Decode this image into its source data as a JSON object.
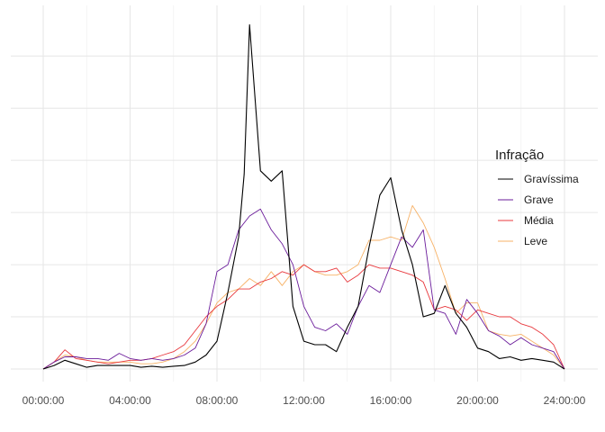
{
  "chart_data": {
    "type": "line",
    "x_axis": {
      "unit": "hours",
      "lim": [
        -1.5,
        25
      ],
      "ticks": [
        0,
        4,
        8,
        12,
        16,
        20,
        24
      ],
      "tick_labels": [
        "00:00:00",
        "04:00:00",
        "08:00:00",
        "12:00:00",
        "16:00:00",
        "20:00:00",
        "24:00:00"
      ]
    },
    "y_axis": {
      "lim": [
        0,
        100
      ],
      "grid_lines": [
        0,
        15,
        30,
        45,
        60,
        75,
        90
      ],
      "tick_labels_shown": false
    },
    "grid": true,
    "legend": {
      "title": "Infração",
      "placement": "right",
      "entries": [
        "Gravíssima",
        "Grave",
        "Média",
        "Leve"
      ]
    },
    "colors": {
      "Gravíssima": "#000000",
      "Grave": "#6a1b9a",
      "Média": "#e8383d",
      "Leve": "#f7b267"
    },
    "series": [
      {
        "name": "Gravíssima",
        "x": [
          0,
          0.5,
          1,
          1.5,
          2,
          2.5,
          3,
          3.5,
          4,
          4.5,
          5,
          5.5,
          6,
          6.5,
          7,
          7.5,
          8,
          8.5,
          9,
          9.25,
          9.5,
          10,
          10.5,
          11,
          11.5,
          12,
          12.5,
          13,
          13.5,
          14,
          14.5,
          15,
          15.5,
          16,
          16.5,
          17,
          17.5,
          18,
          18.5,
          19,
          19.5,
          20,
          20.5,
          21,
          21.5,
          22,
          22.5,
          23,
          23.5,
          24
        ],
        "y": [
          0,
          1,
          2.5,
          1.5,
          0.5,
          1,
          1,
          1,
          1,
          0.5,
          0.8,
          0.5,
          0.8,
          1,
          2,
          4,
          8,
          22,
          38,
          56,
          99,
          57,
          54,
          57,
          18,
          8,
          7,
          7,
          5,
          12,
          18,
          35,
          50,
          55,
          40,
          30,
          15,
          16,
          24,
          16,
          12,
          6,
          5,
          3,
          3.5,
          2.5,
          3,
          2.5,
          2,
          0
        ]
      },
      {
        "name": "Grave",
        "x": [
          0,
          0.5,
          1,
          1.5,
          2,
          2.5,
          3,
          3.5,
          4,
          4.5,
          5,
          5.5,
          6,
          6.5,
          7,
          7.5,
          8,
          8.5,
          9,
          9.5,
          10,
          10.5,
          11,
          11.5,
          12,
          12.5,
          13,
          13.5,
          14,
          14.5,
          15,
          15.5,
          16,
          16.5,
          17,
          17.5,
          18,
          18.5,
          19,
          19.5,
          20,
          20.5,
          21,
          21.5,
          22,
          22.5,
          23,
          23.5,
          24
        ],
        "y": [
          0,
          2,
          3.5,
          3.5,
          3,
          3,
          2.5,
          4.5,
          3,
          2.5,
          3,
          2.5,
          3,
          4,
          6,
          13,
          28,
          30,
          40,
          44,
          46,
          40,
          36,
          30,
          18,
          12,
          11,
          13,
          10,
          18,
          24,
          22,
          30,
          38,
          35,
          40,
          17,
          16,
          10,
          20,
          16,
          11,
          9.5,
          7,
          9,
          7,
          6,
          5,
          0
        ]
      },
      {
        "name": "Média",
        "x": [
          0,
          0.5,
          1,
          1.5,
          2,
          2.5,
          3,
          3.5,
          4,
          4.5,
          5,
          5.5,
          6,
          6.5,
          7,
          7.5,
          8,
          8.5,
          9,
          9.5,
          10,
          10.5,
          11,
          11.5,
          12,
          12.5,
          13,
          13.5,
          14,
          14.5,
          15,
          15.5,
          16,
          16.5,
          17,
          17.5,
          18,
          18.5,
          19,
          19.5,
          20,
          20.5,
          21,
          21.5,
          22,
          22.5,
          23,
          23.5,
          24
        ],
        "y": [
          0,
          2,
          5.5,
          3,
          2.5,
          2,
          1.5,
          2,
          2.5,
          2.5,
          3,
          4,
          5,
          7,
          11,
          15,
          18,
          20,
          23,
          23,
          25,
          26,
          28,
          27,
          30,
          28,
          28,
          29,
          25,
          27,
          30,
          29,
          29,
          28,
          27,
          25,
          17,
          18,
          17,
          14,
          17,
          16,
          15,
          15,
          13,
          12,
          10,
          7,
          0
        ]
      },
      {
        "name": "Leve",
        "x": [
          0,
          0.5,
          1,
          1.5,
          2,
          2.5,
          3,
          3.5,
          4,
          4.5,
          5,
          5.5,
          6,
          6.5,
          7,
          7.5,
          8,
          8.5,
          9,
          9.5,
          10,
          10.5,
          11,
          11.5,
          12,
          12.5,
          13,
          13.5,
          14,
          14.5,
          15,
          15.5,
          16,
          16.5,
          17,
          17.5,
          18,
          18.5,
          19,
          19.5,
          20,
          20.5,
          21,
          21.5,
          22,
          22.5,
          23,
          23.5,
          24
        ],
        "y": [
          0,
          2,
          4,
          3.5,
          2.5,
          2,
          2,
          2,
          2,
          1.5,
          1.5,
          2,
          3,
          5,
          8,
          13,
          19,
          22,
          23,
          26,
          24,
          28,
          24,
          28,
          30,
          28,
          27,
          27,
          28,
          30,
          37,
          37,
          38,
          37,
          47,
          42,
          35,
          26,
          16,
          19,
          19,
          11,
          10,
          9.5,
          10,
          8,
          6,
          4,
          0
        ]
      }
    ]
  }
}
